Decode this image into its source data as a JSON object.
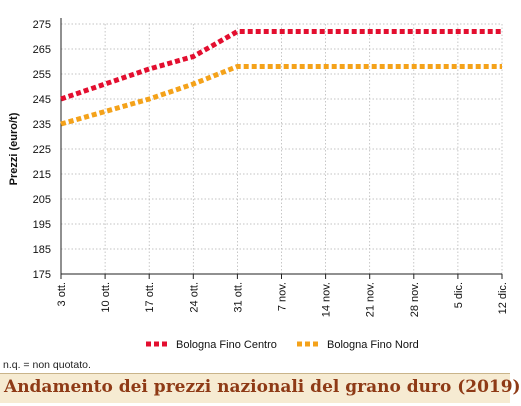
{
  "chart_data": {
    "type": "line",
    "title": "",
    "ylabel": "Prezzi (euro/t)",
    "xlabel": "",
    "ylim": [
      175,
      275
    ],
    "yticks": [
      175,
      185,
      195,
      205,
      215,
      225,
      235,
      245,
      255,
      265,
      275
    ],
    "categories": [
      "3 ott.",
      "10 ott.",
      "17 ott.",
      "24 ott.",
      "31 ott.",
      "7 nov.",
      "14 nov.",
      "21 nov.",
      "28 nov.",
      "5 dic.",
      "12 dic."
    ],
    "series": [
      {
        "name": "Bologna Fino Centro",
        "color": "#e30e2f",
        "values": [
          245,
          251,
          257,
          262,
          272,
          272,
          272,
          272,
          272,
          272,
          272
        ]
      },
      {
        "name": "Bologna Fino Nord",
        "color": "#f4a21a",
        "values": [
          235,
          240,
          245,
          251,
          258,
          258,
          258,
          258,
          258,
          258,
          258
        ]
      }
    ],
    "grid": true,
    "legend_position": "bottom"
  },
  "footnote": "n.q. = non quotato.",
  "caption": "Andamento dei prezzi nazionali del grano duro (2019)",
  "colors": {
    "grid": "#b0b0b0",
    "caption_text": "#8e3a16",
    "caption_bg": "#f6ebd2"
  }
}
